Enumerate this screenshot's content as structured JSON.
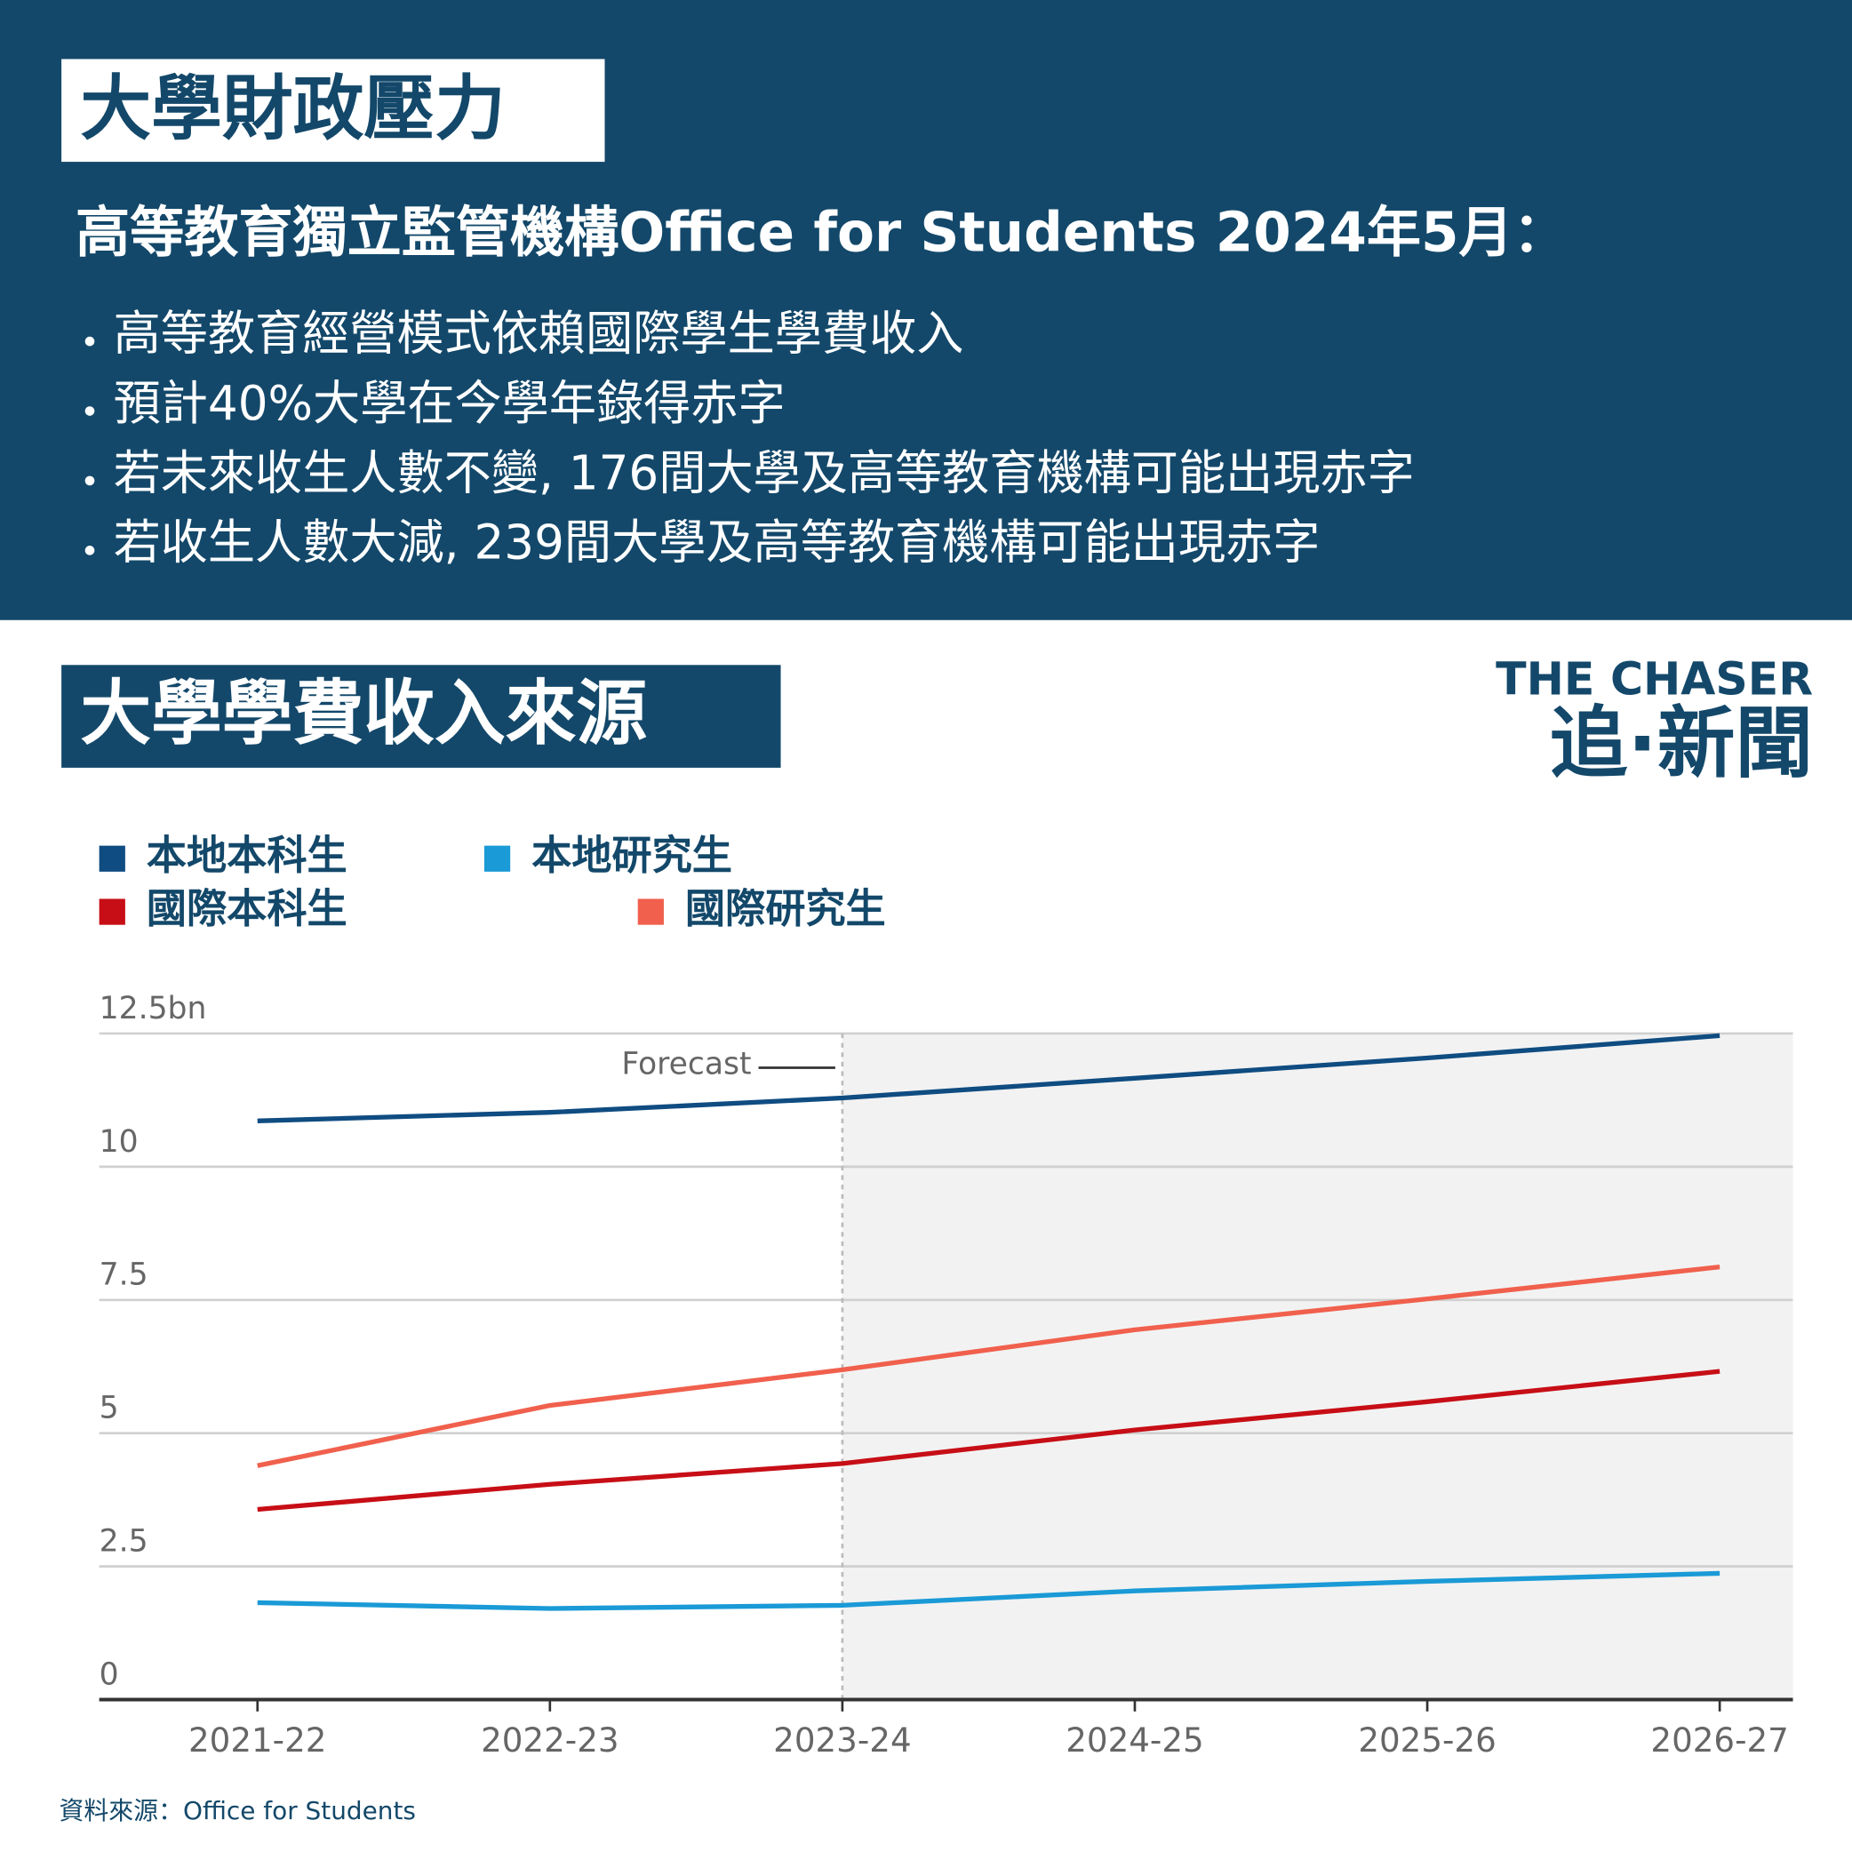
{
  "header": {
    "title": "大學財政壓力",
    "subtitle": "高等教育獨立監管機構Office for Students 2024年5月：",
    "bullets": [
      "高等教育經營模式依賴國際學生學費收入",
      "預計40%大學在今學年錄得赤字",
      "若未來收生人數不變, 176間大學及高等教育機構可能出現赤字",
      "若收生人數大減, 239間大學及高等教育機構可能出現赤字"
    ]
  },
  "logo": {
    "line1": "THE CHASER",
    "line2": "追·新聞"
  },
  "source": "資料來源：Office for Students",
  "chart_data": {
    "type": "line",
    "title": "大學學費收入來源",
    "categories": [
      "2021-22",
      "2022-23",
      "2023-24",
      "2024-25",
      "2025-26",
      "2026-27"
    ],
    "series": [
      {
        "name": "本地本科生",
        "color": "#0f4c81",
        "values": [
          10.86,
          11.02,
          11.29,
          11.66,
          12.04,
          12.46
        ]
      },
      {
        "name": "本地研究生",
        "color": "#1a9ad6",
        "values": [
          1.82,
          1.71,
          1.77,
          2.04,
          2.22,
          2.37
        ]
      },
      {
        "name": "國際本科生",
        "color": "#c70e16",
        "values": [
          3.57,
          4.04,
          4.43,
          5.06,
          5.59,
          6.16
        ]
      },
      {
        "name": "國際研究生",
        "color": "#f0604d",
        "values": [
          4.39,
          5.52,
          6.19,
          6.94,
          7.52,
          8.12
        ]
      }
    ],
    "ylim": [
      0,
      12.5
    ],
    "yticks": [
      0,
      2.5,
      5,
      7.5,
      10,
      {
        "value": 12.5,
        "label": "12.5bn"
      }
    ],
    "grid": true,
    "forecast": {
      "label": "Forecast",
      "from": "2023-24"
    }
  }
}
